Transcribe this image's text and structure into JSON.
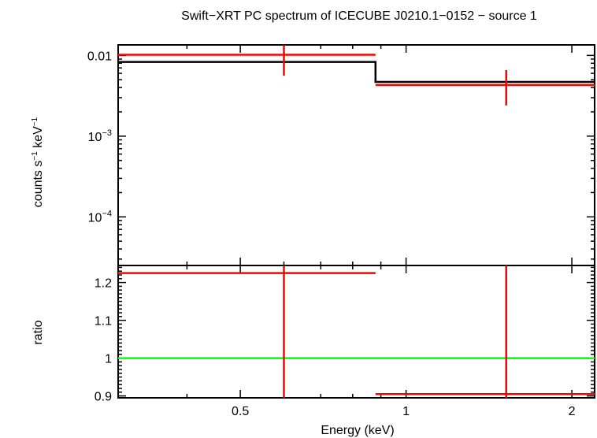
{
  "title": "Swift−XRT PC spectrum of ICECUBE J0210.1−0152 − source 1",
  "xlabel": "Energy (keV)",
  "colors": {
    "data": "#ff0000",
    "model": "#000000",
    "unity": "#00ff00",
    "axes": "#000000"
  },
  "chart_data": [
    {
      "type": "line",
      "panel": "spectrum",
      "ylabel_parts": [
        "counts s",
        "−1",
        " keV",
        "−1"
      ],
      "x_scale": "log",
      "y_scale": "log",
      "xlim": [
        0.3,
        2.2
      ],
      "ylim": [
        2.5e-05,
        0.0135
      ],
      "y_ticks": [
        {
          "value": 0.01,
          "label": "0.01"
        },
        {
          "value": 0.001,
          "base": "10",
          "exp": "−3"
        },
        {
          "value": 0.0001,
          "base": "10",
          "exp": "−4"
        }
      ],
      "series": [
        {
          "role": "data",
          "points": [
            {
              "x": 0.6,
              "xlo": 0.3,
              "xhi": 0.88,
              "y": 0.0102,
              "ylo": 0.0056,
              "yhi": 0.0152
            },
            {
              "x": 1.52,
              "xlo": 0.88,
              "xhi": 2.2,
              "y": 0.0043,
              "ylo": 0.0024,
              "yhi": 0.0066
            }
          ]
        },
        {
          "role": "model",
          "steps": [
            {
              "xlo": 0.3,
              "xhi": 0.88,
              "y": 0.0083
            },
            {
              "xlo": 0.88,
              "xhi": 2.2,
              "y": 0.0047
            }
          ]
        }
      ]
    },
    {
      "type": "line",
      "panel": "ratio",
      "ylabel": "ratio",
      "x_scale": "log",
      "y_scale": "linear",
      "xlim": [
        0.3,
        2.2
      ],
      "ylim": [
        0.895,
        1.245
      ],
      "x_ticks": [
        {
          "value": 0.5,
          "label": "0.5"
        },
        {
          "value": 1,
          "label": "1"
        },
        {
          "value": 2,
          "label": "2"
        }
      ],
      "y_ticks": [
        {
          "value": 0.9,
          "label": "0.9"
        },
        {
          "value": 1,
          "label": "1"
        },
        {
          "value": 1.1,
          "label": "1.1"
        },
        {
          "value": 1.2,
          "label": "1.2"
        }
      ],
      "unity_line": 1,
      "series": [
        {
          "role": "data",
          "points": [
            {
              "x": 0.6,
              "xlo": 0.3,
              "xhi": 0.88,
              "y": 1.225,
              "ylo": 0.895,
              "yhi": 1.245
            },
            {
              "x": 1.52,
              "xlo": 0.88,
              "xhi": 2.2,
              "y": 0.905,
              "ylo": 0.895,
              "yhi": 1.245
            }
          ]
        }
      ]
    }
  ]
}
